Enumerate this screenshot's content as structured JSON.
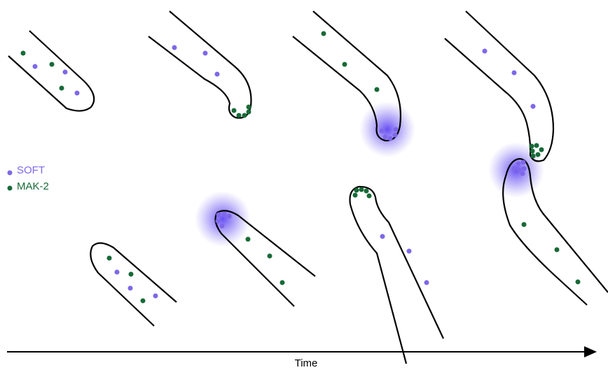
{
  "legend": [
    {
      "label": "SOFT"
    },
    {
      "label": "MAK-2"
    }
  ],
  "axis": {
    "label": "Time"
  }
}
